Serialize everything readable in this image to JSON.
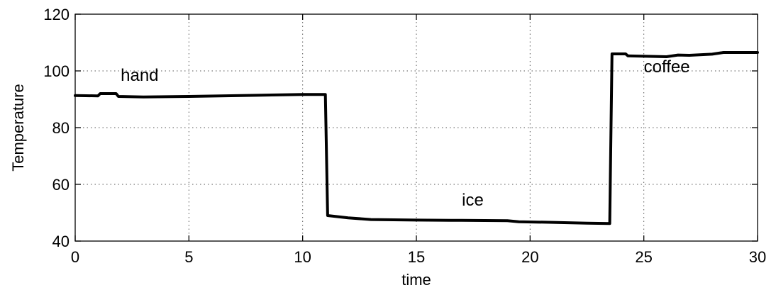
{
  "chart_data": {
    "type": "line",
    "title": "",
    "xlabel": "time",
    "ylabel": "Temperature",
    "xlim": [
      0,
      30
    ],
    "ylim": [
      40,
      120
    ],
    "xticks": [
      0,
      5,
      10,
      15,
      20,
      25,
      30
    ],
    "yticks": [
      40,
      60,
      80,
      100,
      120
    ],
    "x_tick_labels": [
      "0",
      "5",
      "10",
      "15",
      "20",
      "25",
      "30"
    ],
    "y_tick_labels": [
      "40",
      "60",
      "80",
      "100",
      "120"
    ],
    "grid": true,
    "series": [
      {
        "color": "#000000",
        "x": [
          0,
          1.0,
          1.1,
          1.8,
          1.9,
          3.0,
          5.0,
          8.0,
          10.0,
          11.0,
          11.1,
          12.0,
          13.0,
          15.0,
          17.0,
          19.0,
          19.5,
          21.0,
          22.5,
          23.5,
          23.6,
          24.2,
          24.3,
          26.0,
          26.5,
          27.0,
          28.0,
          28.5,
          30.0
        ],
        "y": [
          91.3,
          91.2,
          92.0,
          92.0,
          91.0,
          90.8,
          91.0,
          91.4,
          91.7,
          91.7,
          49.0,
          48.2,
          47.6,
          47.4,
          47.3,
          47.2,
          46.8,
          46.6,
          46.3,
          46.2,
          106.0,
          106.0,
          105.3,
          105.0,
          105.6,
          105.5,
          105.9,
          106.5,
          106.5
        ]
      }
    ],
    "annotations": [
      {
        "text": "hand",
        "x": 2.0,
        "y": 96.5
      },
      {
        "text": "ice",
        "x": 17.0,
        "y": 52.5
      },
      {
        "text": "coffee",
        "x": 25.0,
        "y": 99.5
      }
    ]
  }
}
